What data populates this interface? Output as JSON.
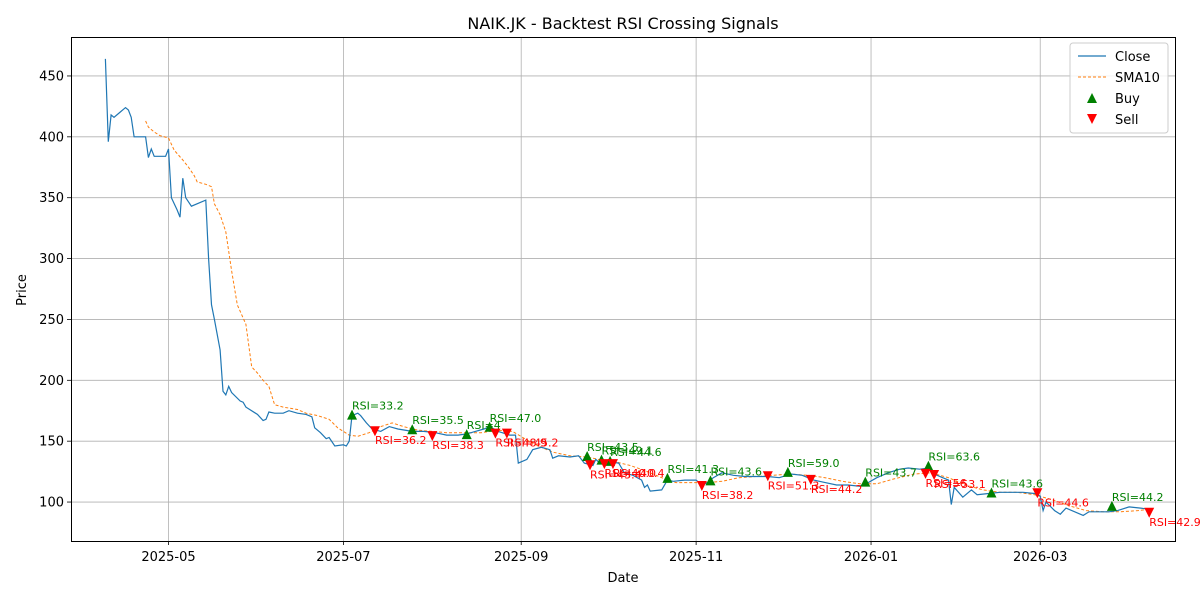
{
  "chart_data": {
    "type": "line",
    "title": "NAIK.JK - Backtest RSI Crossing Signals",
    "xlabel": "Date",
    "ylabel": "Price",
    "xlim": [
      "2025-03-28",
      "2026-04-17"
    ],
    "ylim": [
      68,
      482
    ],
    "x_ticks": [
      "2025-05-01",
      "2025-07-01",
      "2025-09-01",
      "2025-11-01",
      "2026-01-01",
      "2026-03-01"
    ],
    "x_tick_labels": [
      "2025-05",
      "2025-07",
      "2025-09",
      "2025-11",
      "2026-01",
      "2026-03"
    ],
    "y_ticks": [
      100,
      150,
      200,
      250,
      300,
      350,
      400,
      450
    ],
    "grid": true,
    "legend_position": "top-right",
    "legend": [
      "Close",
      "SMA10",
      "Buy",
      "Sell"
    ],
    "colors": {
      "close": "#1f77b4",
      "sma": "#ff7f0e",
      "buy": "#008000",
      "sell": "#ff0000"
    },
    "series": [
      {
        "name": "Close",
        "style": "solid",
        "points": [
          [
            "2025-04-09",
            464
          ],
          [
            "2025-04-10",
            396
          ],
          [
            "2025-04-11",
            418
          ],
          [
            "2025-04-12",
            416
          ],
          [
            "2025-04-14",
            420
          ],
          [
            "2025-04-16",
            424
          ],
          [
            "2025-04-17",
            422
          ],
          [
            "2025-04-18",
            416
          ],
          [
            "2025-04-19",
            400
          ],
          [
            "2025-04-21",
            400
          ],
          [
            "2025-04-23",
            400
          ],
          [
            "2025-04-24",
            383
          ],
          [
            "2025-04-25",
            390
          ],
          [
            "2025-04-26",
            384
          ],
          [
            "2025-04-28",
            384
          ],
          [
            "2025-04-30",
            384
          ],
          [
            "2025-05-01",
            390
          ],
          [
            "2025-05-02",
            350
          ],
          [
            "2025-05-04",
            340
          ],
          [
            "2025-05-05",
            334
          ],
          [
            "2025-05-06",
            366
          ],
          [
            "2025-05-07",
            350
          ],
          [
            "2025-05-09",
            343
          ],
          [
            "2025-05-12",
            346
          ],
          [
            "2025-05-14",
            348
          ],
          [
            "2025-05-15",
            300
          ],
          [
            "2025-05-16",
            262
          ],
          [
            "2025-05-17",
            250
          ],
          [
            "2025-05-19",
            225
          ],
          [
            "2025-05-20",
            191
          ],
          [
            "2025-05-21",
            188
          ],
          [
            "2025-05-22",
            195
          ],
          [
            "2025-05-23",
            190
          ],
          [
            "2025-05-26",
            183
          ],
          [
            "2025-05-27",
            182
          ],
          [
            "2025-05-28",
            178
          ],
          [
            "2025-06-01",
            172
          ],
          [
            "2025-06-03",
            167
          ],
          [
            "2025-06-04",
            168
          ],
          [
            "2025-06-05",
            174
          ],
          [
            "2025-06-07",
            173
          ],
          [
            "2025-06-10",
            173
          ],
          [
            "2025-06-12",
            175
          ],
          [
            "2025-06-15",
            173
          ],
          [
            "2025-06-18",
            172
          ],
          [
            "2025-06-20",
            170
          ],
          [
            "2025-06-21",
            161
          ],
          [
            "2025-06-23",
            157
          ],
          [
            "2025-06-25",
            152
          ],
          [
            "2025-06-26",
            153
          ],
          [
            "2025-06-28",
            146
          ],
          [
            "2025-07-01",
            147
          ],
          [
            "2025-07-02",
            146
          ],
          [
            "2025-07-03",
            150
          ],
          [
            "2025-07-04",
            171
          ],
          [
            "2025-07-06",
            173
          ],
          [
            "2025-07-07",
            171
          ],
          [
            "2025-07-09",
            165
          ],
          [
            "2025-07-11",
            160
          ],
          [
            "2025-07-14",
            158
          ],
          [
            "2025-07-17",
            162
          ],
          [
            "2025-07-20",
            160
          ],
          [
            "2025-07-25",
            158
          ],
          [
            "2025-07-29",
            158
          ],
          [
            "2025-08-02",
            157
          ],
          [
            "2025-08-06",
            155
          ],
          [
            "2025-08-10",
            155
          ],
          [
            "2025-08-13",
            156
          ],
          [
            "2025-08-16",
            158
          ],
          [
            "2025-08-19",
            160
          ],
          [
            "2025-08-21",
            162
          ],
          [
            "2025-08-24",
            158
          ],
          [
            "2025-08-28",
            155
          ],
          [
            "2025-08-30",
            155
          ],
          [
            "2025-08-31",
            132
          ],
          [
            "2025-09-03",
            135
          ],
          [
            "2025-09-05",
            143
          ],
          [
            "2025-09-08",
            145
          ],
          [
            "2025-09-11",
            143
          ],
          [
            "2025-09-12",
            136
          ],
          [
            "2025-09-14",
            138
          ],
          [
            "2025-09-18",
            137
          ],
          [
            "2025-09-21",
            138
          ],
          [
            "2025-09-23",
            132
          ],
          [
            "2025-09-26",
            130
          ],
          [
            "2025-09-27",
            135
          ],
          [
            "2025-09-28",
            133
          ],
          [
            "2025-09-30",
            132
          ],
          [
            "2025-10-02",
            133
          ],
          [
            "2025-10-05",
            132
          ],
          [
            "2025-10-07",
            124
          ],
          [
            "2025-10-10",
            122
          ],
          [
            "2025-10-13",
            118
          ],
          [
            "2025-10-14",
            112
          ],
          [
            "2025-10-15",
            114
          ],
          [
            "2025-10-16",
            109
          ],
          [
            "2025-10-20",
            110
          ],
          [
            "2025-10-22",
            118
          ],
          [
            "2025-10-24",
            117
          ],
          [
            "2025-10-28",
            118
          ],
          [
            "2025-11-01",
            118
          ],
          [
            "2025-11-03",
            114
          ],
          [
            "2025-11-05",
            116
          ],
          [
            "2025-11-07",
            120
          ],
          [
            "2025-11-10",
            124
          ],
          [
            "2025-11-14",
            122
          ],
          [
            "2025-11-18",
            121
          ],
          [
            "2025-11-22",
            121
          ],
          [
            "2025-11-26",
            121
          ],
          [
            "2025-11-30",
            120
          ],
          [
            "2025-12-04",
            123
          ],
          [
            "2025-12-08",
            122
          ],
          [
            "2025-12-12",
            118
          ],
          [
            "2025-12-16",
            116
          ],
          [
            "2025-12-20",
            114
          ],
          [
            "2025-12-24",
            114
          ],
          [
            "2025-12-28",
            113
          ],
          [
            "2025-12-31",
            116
          ],
          [
            "2026-01-03",
            120
          ],
          [
            "2026-01-07",
            124
          ],
          [
            "2026-01-11",
            127
          ],
          [
            "2026-01-14",
            128
          ],
          [
            "2026-01-18",
            127
          ],
          [
            "2026-01-21",
            128
          ],
          [
            "2026-01-23",
            123
          ],
          [
            "2026-01-26",
            120
          ],
          [
            "2026-01-28",
            118
          ],
          [
            "2026-01-29",
            98
          ],
          [
            "2026-01-30",
            112
          ],
          [
            "2026-02-02",
            104
          ],
          [
            "2026-02-05",
            110
          ],
          [
            "2026-02-07",
            106
          ],
          [
            "2026-02-11",
            107
          ],
          [
            "2026-02-15",
            108
          ],
          [
            "2026-02-19",
            108
          ],
          [
            "2026-02-23",
            108
          ],
          [
            "2026-02-27",
            107
          ],
          [
            "2026-03-01",
            105
          ],
          [
            "2026-03-02",
            93
          ],
          [
            "2026-03-03",
            100
          ],
          [
            "2026-03-06",
            93
          ],
          [
            "2026-03-08",
            90
          ],
          [
            "2026-03-10",
            95
          ],
          [
            "2026-03-16",
            89
          ],
          [
            "2026-03-18",
            92
          ],
          [
            "2026-03-21",
            92
          ],
          [
            "2026-03-25",
            92
          ],
          [
            "2026-03-28",
            93
          ],
          [
            "2026-04-01",
            96
          ],
          [
            "2026-04-05",
            95
          ],
          [
            "2026-04-08",
            94
          ]
        ]
      },
      {
        "name": "SMA10",
        "style": "dashed",
        "points": [
          [
            "2025-04-23",
            413
          ],
          [
            "2025-04-24",
            408
          ],
          [
            "2025-04-26",
            404
          ],
          [
            "2025-04-28",
            401
          ],
          [
            "2025-05-01",
            399
          ],
          [
            "2025-05-03",
            389
          ],
          [
            "2025-05-06",
            381
          ],
          [
            "2025-05-08",
            375
          ],
          [
            "2025-05-10",
            368
          ],
          [
            "2025-05-11",
            363
          ],
          [
            "2025-05-14",
            361
          ],
          [
            "2025-05-16",
            359
          ],
          [
            "2025-05-17",
            345
          ],
          [
            "2025-05-19",
            336
          ],
          [
            "2025-05-21",
            322
          ],
          [
            "2025-05-23",
            290
          ],
          [
            "2025-05-25",
            262
          ],
          [
            "2025-05-28",
            246
          ],
          [
            "2025-05-30",
            211
          ],
          [
            "2025-06-01",
            206
          ],
          [
            "2025-06-03",
            200
          ],
          [
            "2025-06-05",
            195
          ],
          [
            "2025-06-07",
            180
          ],
          [
            "2025-06-10",
            178
          ],
          [
            "2025-06-15",
            176
          ],
          [
            "2025-06-18",
            173
          ],
          [
            "2025-06-22",
            171
          ],
          [
            "2025-06-26",
            168
          ],
          [
            "2025-06-29",
            161
          ],
          [
            "2025-07-03",
            155
          ],
          [
            "2025-07-06",
            154
          ],
          [
            "2025-07-10",
            157
          ],
          [
            "2025-07-14",
            162
          ],
          [
            "2025-07-18",
            165
          ],
          [
            "2025-07-22",
            162
          ],
          [
            "2025-07-27",
            159
          ],
          [
            "2025-08-01",
            158
          ],
          [
            "2025-08-06",
            157
          ],
          [
            "2025-08-12",
            157
          ],
          [
            "2025-08-18",
            157
          ],
          [
            "2025-08-24",
            159
          ],
          [
            "2025-08-29",
            158
          ],
          [
            "2025-09-03",
            151
          ],
          [
            "2025-09-07",
            146
          ],
          [
            "2025-09-12",
            141
          ],
          [
            "2025-09-18",
            138
          ],
          [
            "2025-09-24",
            137
          ],
          [
            "2025-09-30",
            134
          ],
          [
            "2025-10-04",
            133
          ],
          [
            "2025-10-09",
            130
          ],
          [
            "2025-10-14",
            126
          ],
          [
            "2025-10-20",
            120
          ],
          [
            "2025-10-25",
            116
          ],
          [
            "2025-10-31",
            116
          ],
          [
            "2025-11-05",
            116
          ],
          [
            "2025-11-10",
            117
          ],
          [
            "2025-11-16",
            120
          ],
          [
            "2025-11-22",
            121
          ],
          [
            "2025-11-28",
            122
          ],
          [
            "2025-12-04",
            123
          ],
          [
            "2025-12-10",
            122
          ],
          [
            "2025-12-16",
            120
          ],
          [
            "2025-12-22",
            117
          ],
          [
            "2025-12-28",
            115
          ],
          [
            "2026-01-03",
            115
          ],
          [
            "2026-01-09",
            119
          ],
          [
            "2026-01-16",
            123
          ],
          [
            "2026-01-22",
            124
          ],
          [
            "2026-01-28",
            120
          ],
          [
            "2026-02-03",
            114
          ],
          [
            "2026-02-09",
            110
          ],
          [
            "2026-02-15",
            108
          ],
          [
            "2026-02-21",
            108
          ],
          [
            "2026-02-27",
            106
          ],
          [
            "2026-03-05",
            102
          ],
          [
            "2026-03-11",
            97
          ],
          [
            "2026-03-17",
            93
          ],
          [
            "2026-03-23",
            92
          ],
          [
            "2026-03-29",
            92
          ],
          [
            "2026-04-04",
            93
          ],
          [
            "2026-04-08",
            94
          ]
        ]
      }
    ],
    "buy_signals": [
      {
        "x": "2025-07-04",
        "y": 171,
        "label": "RSI=33.2"
      },
      {
        "x": "2025-07-25",
        "y": 159,
        "label": "RSI=35.5"
      },
      {
        "x": "2025-08-13",
        "y": 155,
        "label": "RSI=4"
      },
      {
        "x": "2025-08-21",
        "y": 161,
        "label": "RSI=47.0"
      },
      {
        "x": "2025-09-24",
        "y": 137,
        "label": "RSI=43.5"
      },
      {
        "x": "2025-09-29",
        "y": 134,
        "label": "RSI=49.1"
      },
      {
        "x": "2025-10-02",
        "y": 133,
        "label": "RSI=44.6"
      },
      {
        "x": "2025-10-22",
        "y": 119,
        "label": "RSI=41.3"
      },
      {
        "x": "2025-11-06",
        "y": 117,
        "label": "RSI=43.6"
      },
      {
        "x": "2025-12-03",
        "y": 124,
        "label": "RSI=59.0"
      },
      {
        "x": "2025-12-30",
        "y": 116,
        "label": "RSI=43.7"
      },
      {
        "x": "2026-01-21",
        "y": 129,
        "label": "RSI=63.6"
      },
      {
        "x": "2026-02-12",
        "y": 107,
        "label": "RSI=43.6"
      },
      {
        "x": "2026-03-26",
        "y": 96,
        "label": "RSI=44.2"
      }
    ],
    "sell_signals": [
      {
        "x": "2025-07-12",
        "y": 159,
        "label": "RSI=36.2"
      },
      {
        "x": "2025-08-01",
        "y": 155,
        "label": "RSI=38.3"
      },
      {
        "x": "2025-08-23",
        "y": 157,
        "label": "RSI=48.9"
      },
      {
        "x": "2025-08-27",
        "y": 157,
        "label": "RSI=45.2"
      },
      {
        "x": "2025-09-25",
        "y": 131,
        "label": "RSI=43.4"
      },
      {
        "x": "2025-09-30",
        "y": 132,
        "label": "RSI=40.0"
      },
      {
        "x": "2025-10-03",
        "y": 132,
        "label": "RSI=40.4"
      },
      {
        "x": "2025-11-03",
        "y": 114,
        "label": "RSI=38.2"
      },
      {
        "x": "2025-11-26",
        "y": 122,
        "label": "RSI=51.3"
      },
      {
        "x": "2025-12-11",
        "y": 119,
        "label": "RSI=44.2"
      },
      {
        "x": "2026-01-20",
        "y": 124,
        "label": "RSI=56."
      },
      {
        "x": "2026-01-23",
        "y": 123,
        "label": "RSI=53.1"
      },
      {
        "x": "2026-02-28",
        "y": 108,
        "label": "RSI=44.6"
      },
      {
        "x": "2026-04-08",
        "y": 92,
        "label": "RSI=42.9"
      }
    ]
  }
}
